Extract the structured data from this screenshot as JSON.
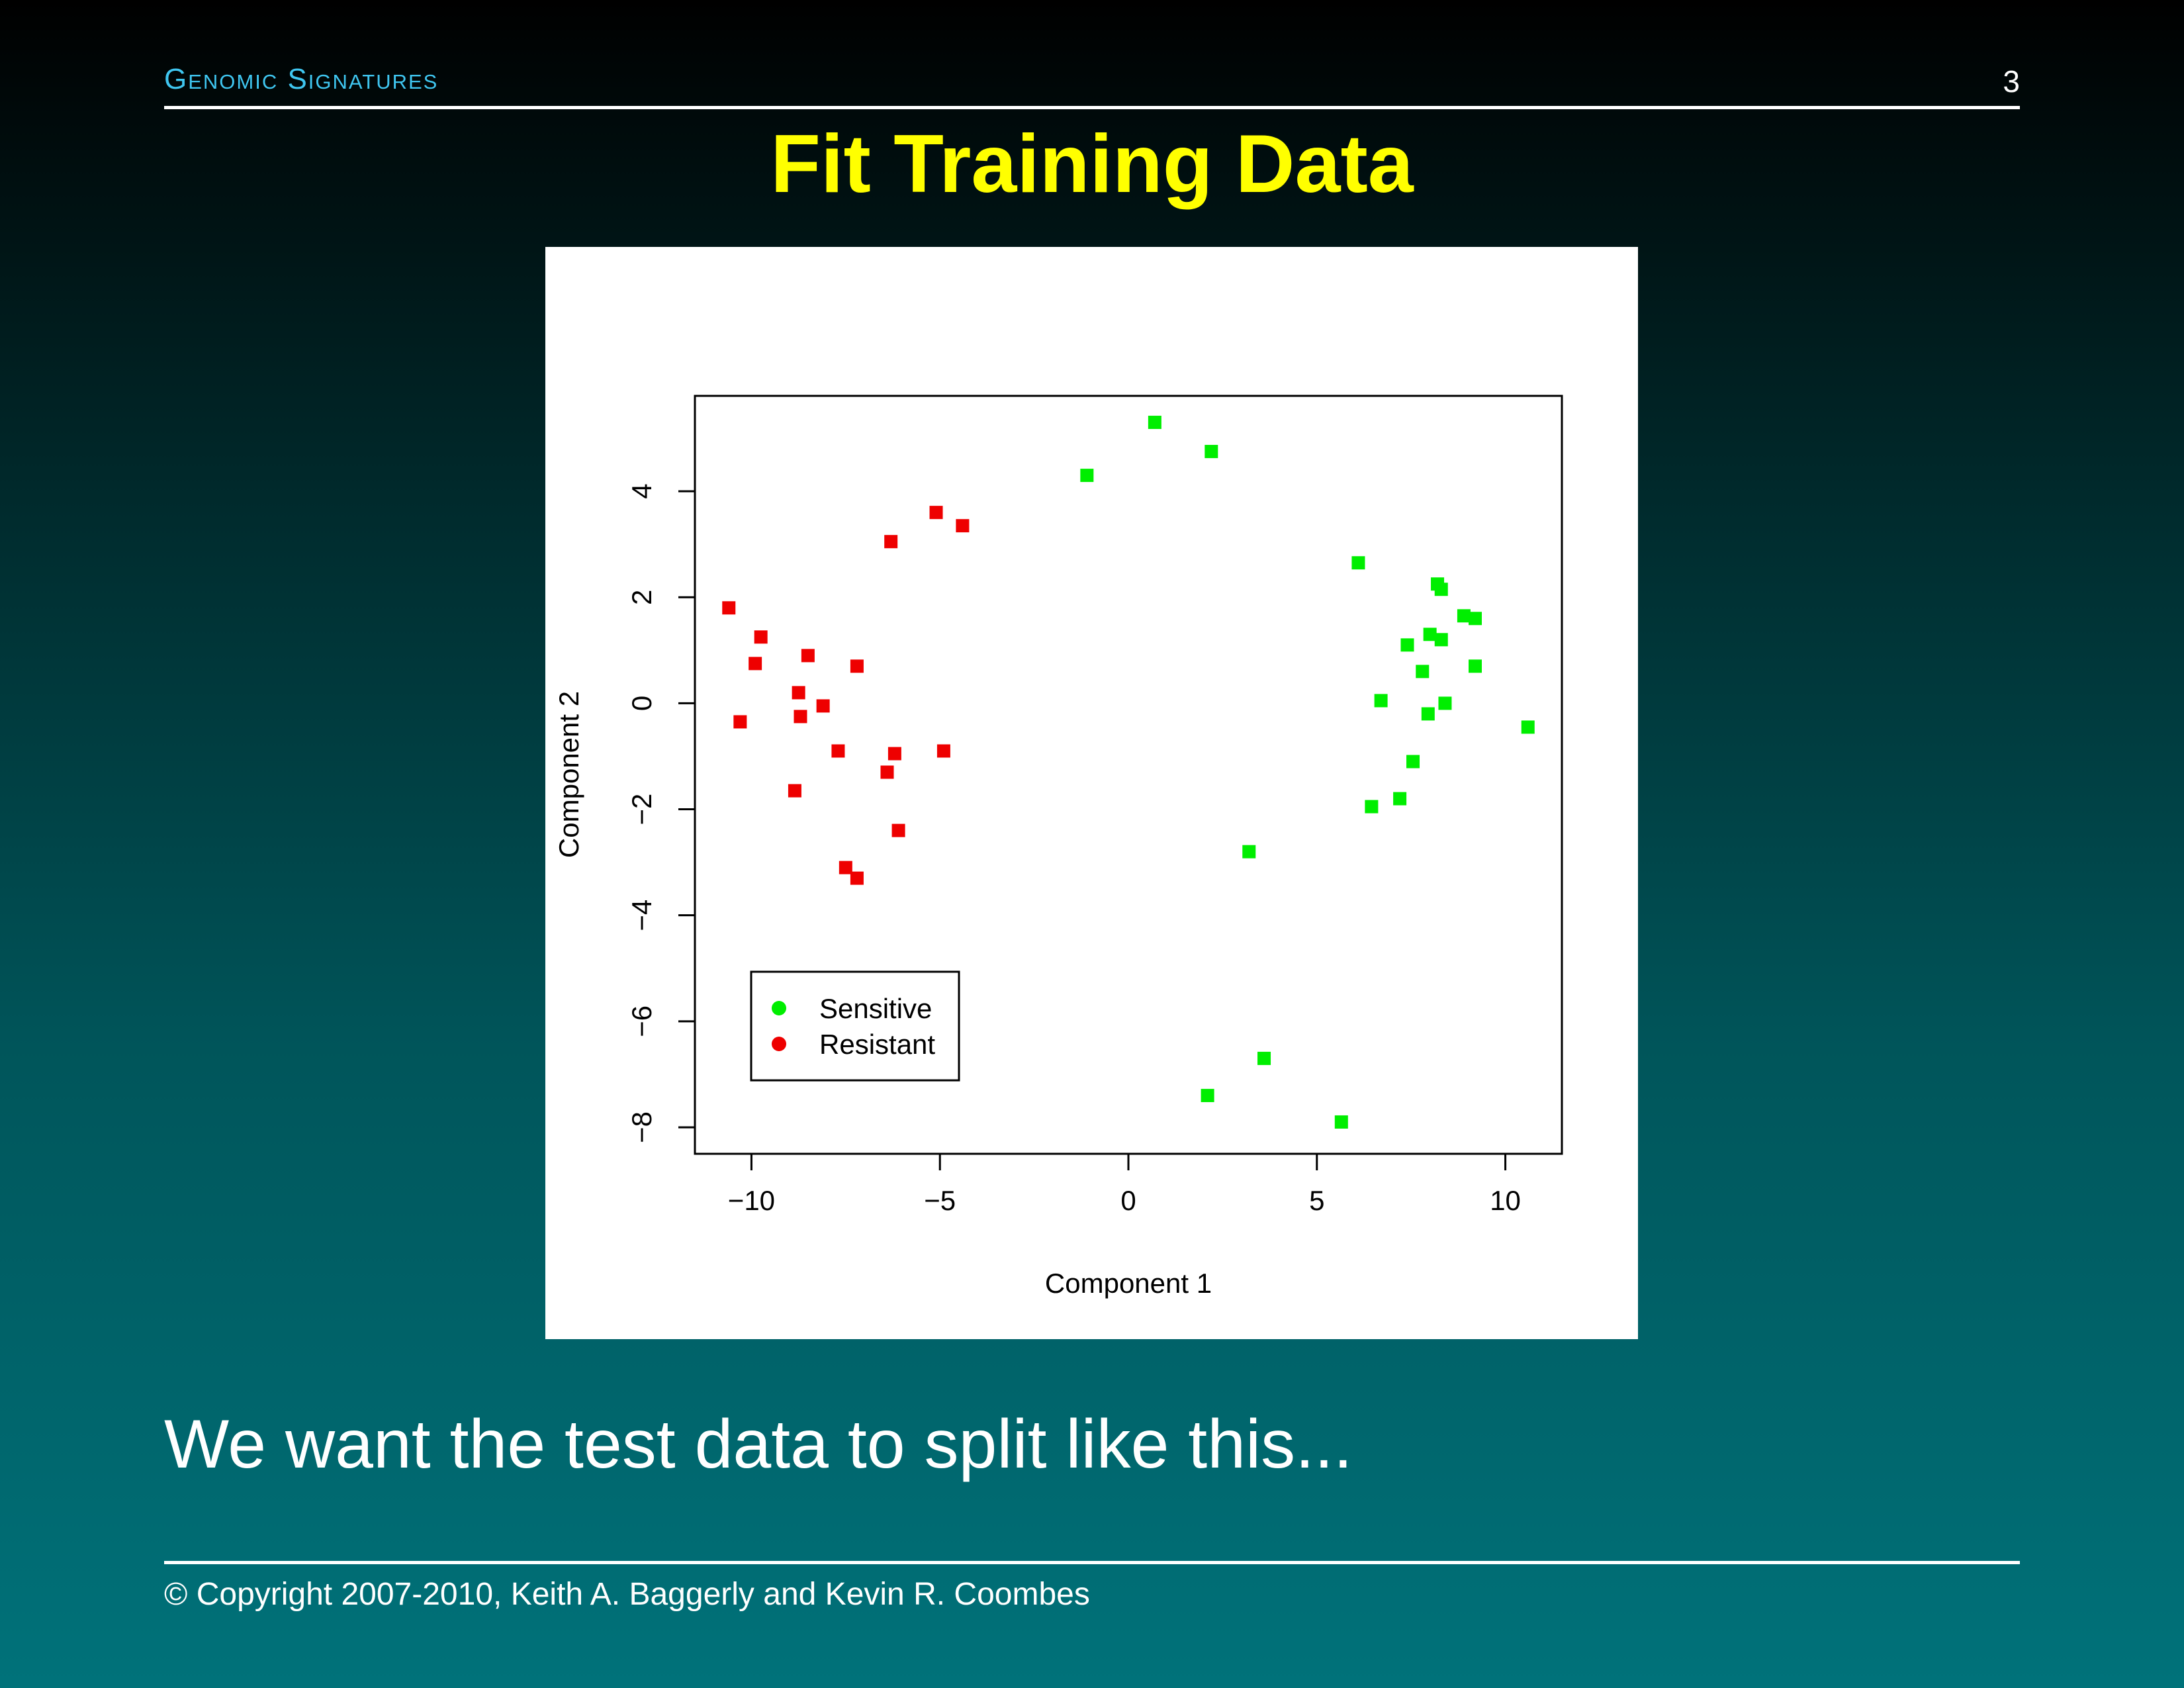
{
  "header": {
    "section_title": "Genomic Signatures",
    "page_number": "3"
  },
  "slide": {
    "title": "Fit Training Data",
    "body_text": "We want the test data to split like this...",
    "copyright": "© Copyright 2007-2010, Keith A. Baggerly and Kevin R. Coombes"
  },
  "colors": {
    "title": "#ffff00",
    "header": "#3fc6f0",
    "sensitive": "#00ee00",
    "resistant": "#ee0000"
  },
  "chart_data": {
    "type": "scatter",
    "title": "",
    "xlabel": "Component 1",
    "ylabel": "Component 2",
    "xlim": [
      -11.5,
      11.5
    ],
    "ylim": [
      -8.5,
      5.8
    ],
    "x_ticks": [
      -10,
      -5,
      0,
      5,
      10
    ],
    "y_ticks": [
      -8,
      -6,
      -4,
      -2,
      0,
      2,
      4
    ],
    "x_tick_labels": [
      "−10",
      "−5",
      "0",
      "5",
      "10"
    ],
    "y_tick_labels": [
      "−8",
      "−6",
      "−4",
      "−2",
      "0",
      "2",
      "4"
    ],
    "grid": false,
    "legend_position": "bottom-left",
    "series": [
      {
        "name": "Sensitive",
        "color": "#00ee00",
        "points": [
          [
            -1.1,
            4.3
          ],
          [
            0.7,
            5.3
          ],
          [
            2.2,
            4.75
          ],
          [
            6.1,
            2.65
          ],
          [
            8.2,
            2.25
          ],
          [
            8.3,
            2.15
          ],
          [
            8.9,
            1.65
          ],
          [
            9.2,
            1.6
          ],
          [
            8.0,
            1.3
          ],
          [
            8.3,
            1.2
          ],
          [
            7.4,
            1.1
          ],
          [
            7.8,
            0.6
          ],
          [
            9.2,
            0.7
          ],
          [
            6.7,
            0.05
          ],
          [
            8.4,
            0.0
          ],
          [
            7.95,
            -0.2
          ],
          [
            10.6,
            -0.45
          ],
          [
            7.55,
            -1.1
          ],
          [
            7.2,
            -1.8
          ],
          [
            6.45,
            -1.95
          ],
          [
            3.2,
            -2.8
          ],
          [
            3.6,
            -6.7
          ],
          [
            2.1,
            -7.4
          ],
          [
            5.65,
            -7.9
          ]
        ]
      },
      {
        "name": "Resistant",
        "color": "#ee0000",
        "points": [
          [
            -5.1,
            3.6
          ],
          [
            -4.4,
            3.35
          ],
          [
            -6.3,
            3.05
          ],
          [
            -10.6,
            1.8
          ],
          [
            -9.75,
            1.25
          ],
          [
            -8.5,
            0.9
          ],
          [
            -9.9,
            0.75
          ],
          [
            -7.2,
            0.7
          ],
          [
            -8.75,
            0.2
          ],
          [
            -8.1,
            -0.05
          ],
          [
            -8.7,
            -0.25
          ],
          [
            -10.3,
            -0.35
          ],
          [
            -7.7,
            -0.9
          ],
          [
            -6.2,
            -0.95
          ],
          [
            -4.9,
            -0.9
          ],
          [
            -6.4,
            -1.3
          ],
          [
            -8.85,
            -1.65
          ],
          [
            -6.1,
            -2.4
          ],
          [
            -7.5,
            -3.1
          ],
          [
            -7.2,
            -3.3
          ]
        ]
      }
    ]
  }
}
